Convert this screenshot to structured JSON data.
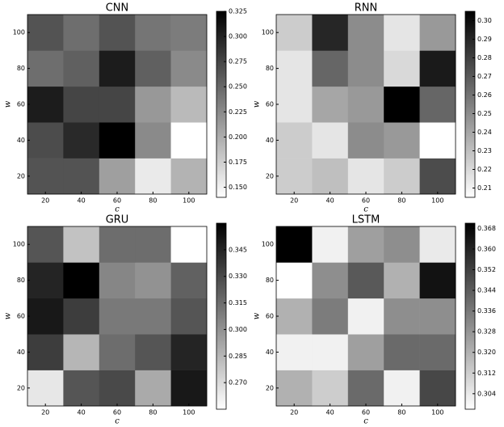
{
  "chart_data": [
    {
      "type": "heatmap",
      "title": "CNN",
      "x_label": "c",
      "y_label": "w",
      "colormap": "gray_r",
      "x_categories": [
        20,
        40,
        60,
        80,
        100
      ],
      "y_categories": [
        20,
        40,
        60,
        80,
        100
      ],
      "values": [
        [
          0.265,
          0.265,
          0.21,
          0.155,
          0.195
        ],
        [
          0.27,
          0.295,
          0.325,
          0.225,
          0.14
        ],
        [
          0.305,
          0.275,
          0.275,
          0.215,
          0.19
        ],
        [
          0.245,
          0.255,
          0.305,
          0.255,
          0.225
        ],
        [
          0.265,
          0.245,
          0.265,
          0.24,
          0.235
        ]
      ],
      "clim": [
        0.14,
        0.325
      ],
      "cticks": [
        {
          "value": 0.15,
          "label": "0.150"
        },
        0.175,
        {
          "value": 0.2,
          "label": "0.200"
        },
        0.225,
        {
          "value": 0.25,
          "label": "0.250"
        },
        0.275,
        {
          "value": 0.3,
          "label": "0.300"
        },
        0.325
      ]
    },
    {
      "type": "heatmap",
      "title": "RNN",
      "x_label": "c",
      "y_label": "w",
      "colormap": "gray_r",
      "x_categories": [
        20,
        40,
        60,
        80,
        100
      ],
      "y_categories": [
        20,
        40,
        60,
        80,
        100
      ],
      "values": [
        [
          0.225,
          0.23,
          0.215,
          0.225,
          0.275
        ],
        [
          0.225,
          0.215,
          0.25,
          0.245,
          0.205
        ],
        [
          0.215,
          0.24,
          0.245,
          0.305,
          0.265
        ],
        [
          0.215,
          0.265,
          0.25,
          0.22,
          0.295
        ],
        [
          0.225,
          0.29,
          0.25,
          0.215,
          0.245
        ]
      ],
      "clim": [
        0.205,
        0.305
      ],
      "cticks": [
        0.21,
        0.22,
        0.23,
        0.24,
        0.25,
        0.26,
        0.27,
        0.28,
        0.29,
        {
          "value": 0.3,
          "label": "0.30"
        }
      ]
    },
    {
      "type": "heatmap",
      "title": "GRU",
      "x_label": "c",
      "y_label": "w",
      "colormap": "gray_r",
      "x_categories": [
        20,
        40,
        60,
        80,
        100
      ],
      "y_categories": [
        20,
        40,
        60,
        80,
        100
      ],
      "values": [
        [
          0.265,
          0.325,
          0.33,
          0.29,
          0.35
        ],
        [
          0.335,
          0.285,
          0.315,
          0.325,
          0.345
        ],
        [
          0.35,
          0.335,
          0.31,
          0.31,
          0.325
        ],
        [
          0.345,
          0.36,
          0.305,
          0.3,
          0.32
        ],
        [
          0.325,
          0.28,
          0.315,
          0.315,
          0.255
        ]
      ],
      "clim": [
        0.255,
        0.36
      ],
      "cticks": [
        {
          "value": 0.27,
          "label": "0.270"
        },
        0.285,
        {
          "value": 0.3,
          "label": "0.300"
        },
        0.315,
        {
          "value": 0.33,
          "label": "0.330"
        },
        0.345
      ]
    },
    {
      "type": "heatmap",
      "title": "LSTM",
      "x_label": "c",
      "y_label": "w",
      "colormap": "gray_r",
      "x_categories": [
        20,
        40,
        60,
        80,
        100
      ],
      "y_categories": [
        20,
        40,
        60,
        80,
        100
      ],
      "values": [
        [
          0.32,
          0.312,
          0.34,
          0.302,
          0.35
        ],
        [
          0.302,
          0.302,
          0.325,
          0.34,
          0.34
        ],
        [
          0.32,
          0.335,
          0.302,
          0.33,
          0.33
        ],
        [
          0.298,
          0.33,
          0.345,
          0.32,
          0.365
        ],
        [
          0.37,
          0.302,
          0.325,
          0.33,
          0.304
        ]
      ],
      "clim": [
        0.298,
        0.37
      ],
      "cticks": [
        0.304,
        0.312,
        {
          "value": 0.32,
          "label": "0.320"
        },
        0.328,
        0.336,
        0.344,
        0.352,
        {
          "value": 0.36,
          "label": "0.360"
        },
        0.368
      ]
    }
  ]
}
